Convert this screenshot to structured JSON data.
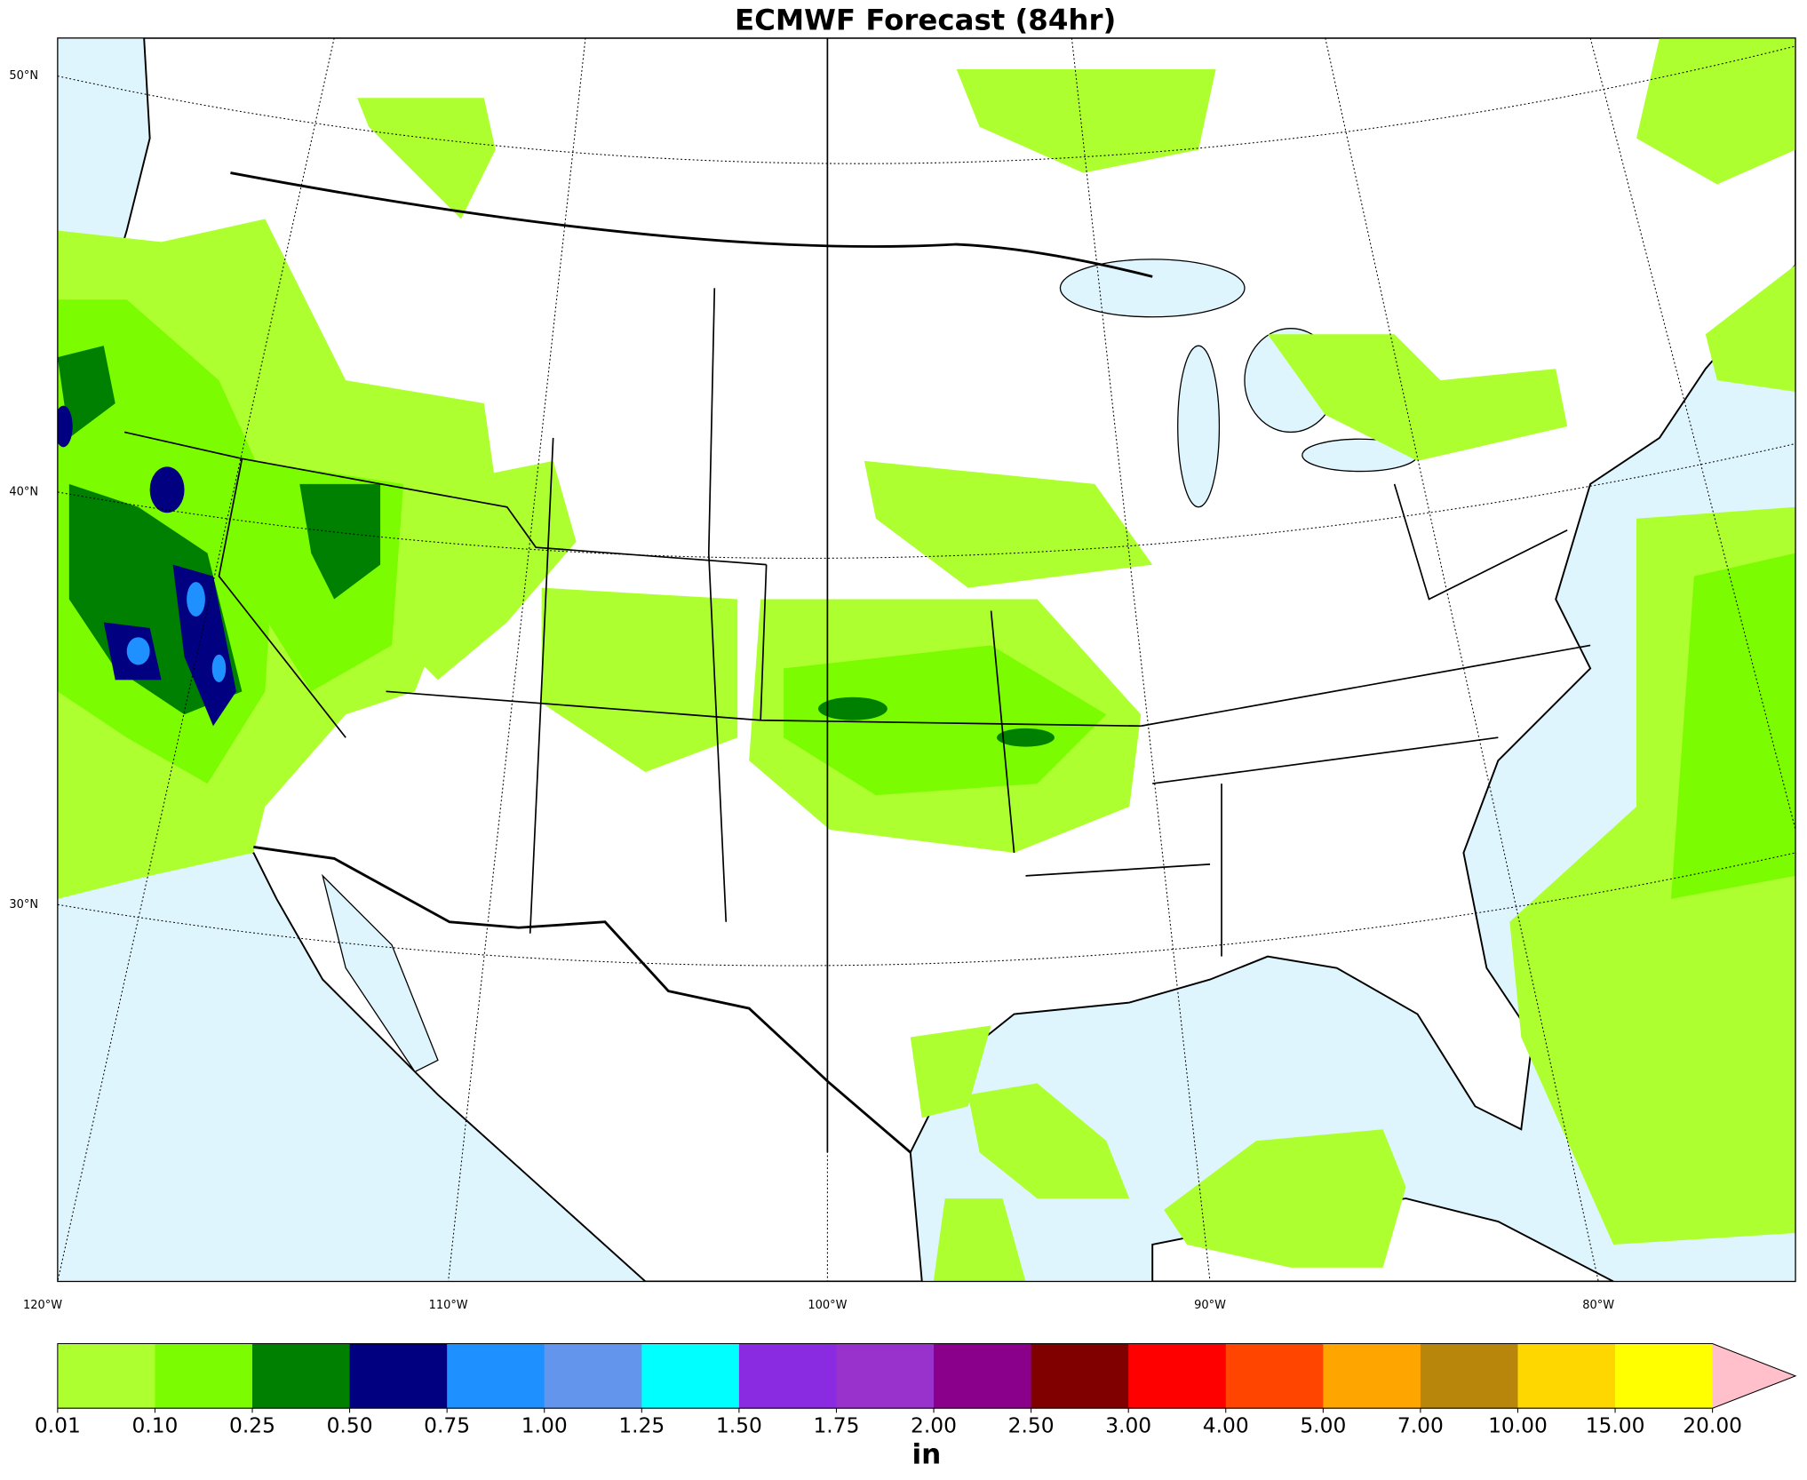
{
  "title": "ECMWF Forecast (84hr)",
  "map": {
    "lat_labels": [
      "50°N",
      "40°N",
      "30°N"
    ],
    "lon_labels": [
      "120°W",
      "110°W",
      "100°W",
      "90°W",
      "80°W"
    ]
  },
  "colorbar": {
    "ticks": [
      {
        "value": 0.01,
        "label": "0.01"
      },
      {
        "value": 0.1,
        "label": "0.10"
      },
      {
        "value": 0.25,
        "label": "0.25"
      },
      {
        "value": 0.5,
        "label": "0.50"
      },
      {
        "value": 0.75,
        "label": "0.75"
      },
      {
        "value": 1,
        "label": "1.00"
      },
      {
        "value": 1.25,
        "label": "1.25"
      },
      {
        "value": 1.5,
        "label": "1.50"
      },
      {
        "value": 1.75,
        "label": "1.75"
      },
      {
        "value": 2,
        "label": "2.00"
      },
      {
        "value": 2.5,
        "label": "2.50"
      },
      {
        "value": 3,
        "label": "3.00"
      },
      {
        "value": 4,
        "label": "4.00"
      },
      {
        "value": 5,
        "label": "5.00"
      },
      {
        "value": 7,
        "label": "7.00"
      },
      {
        "value": 10,
        "label": "10.00"
      },
      {
        "value": 15,
        "label": "15.00"
      },
      {
        "value": 20,
        "label": "20.00"
      }
    ],
    "colors": [
      "#adff2f",
      "#7cfc00",
      "#008000",
      "#000080",
      "#1e90ff",
      "#6495ed",
      "#00ffff",
      "#8a2be2",
      "#9932cc",
      "#8b008b",
      "#800000",
      "#ff0000",
      "#ff4500",
      "#ffa500",
      "#b8860b",
      "#ffd700",
      "#ffff00"
    ],
    "extend_color": "#ffc0cb",
    "unit": "in"
  }
}
